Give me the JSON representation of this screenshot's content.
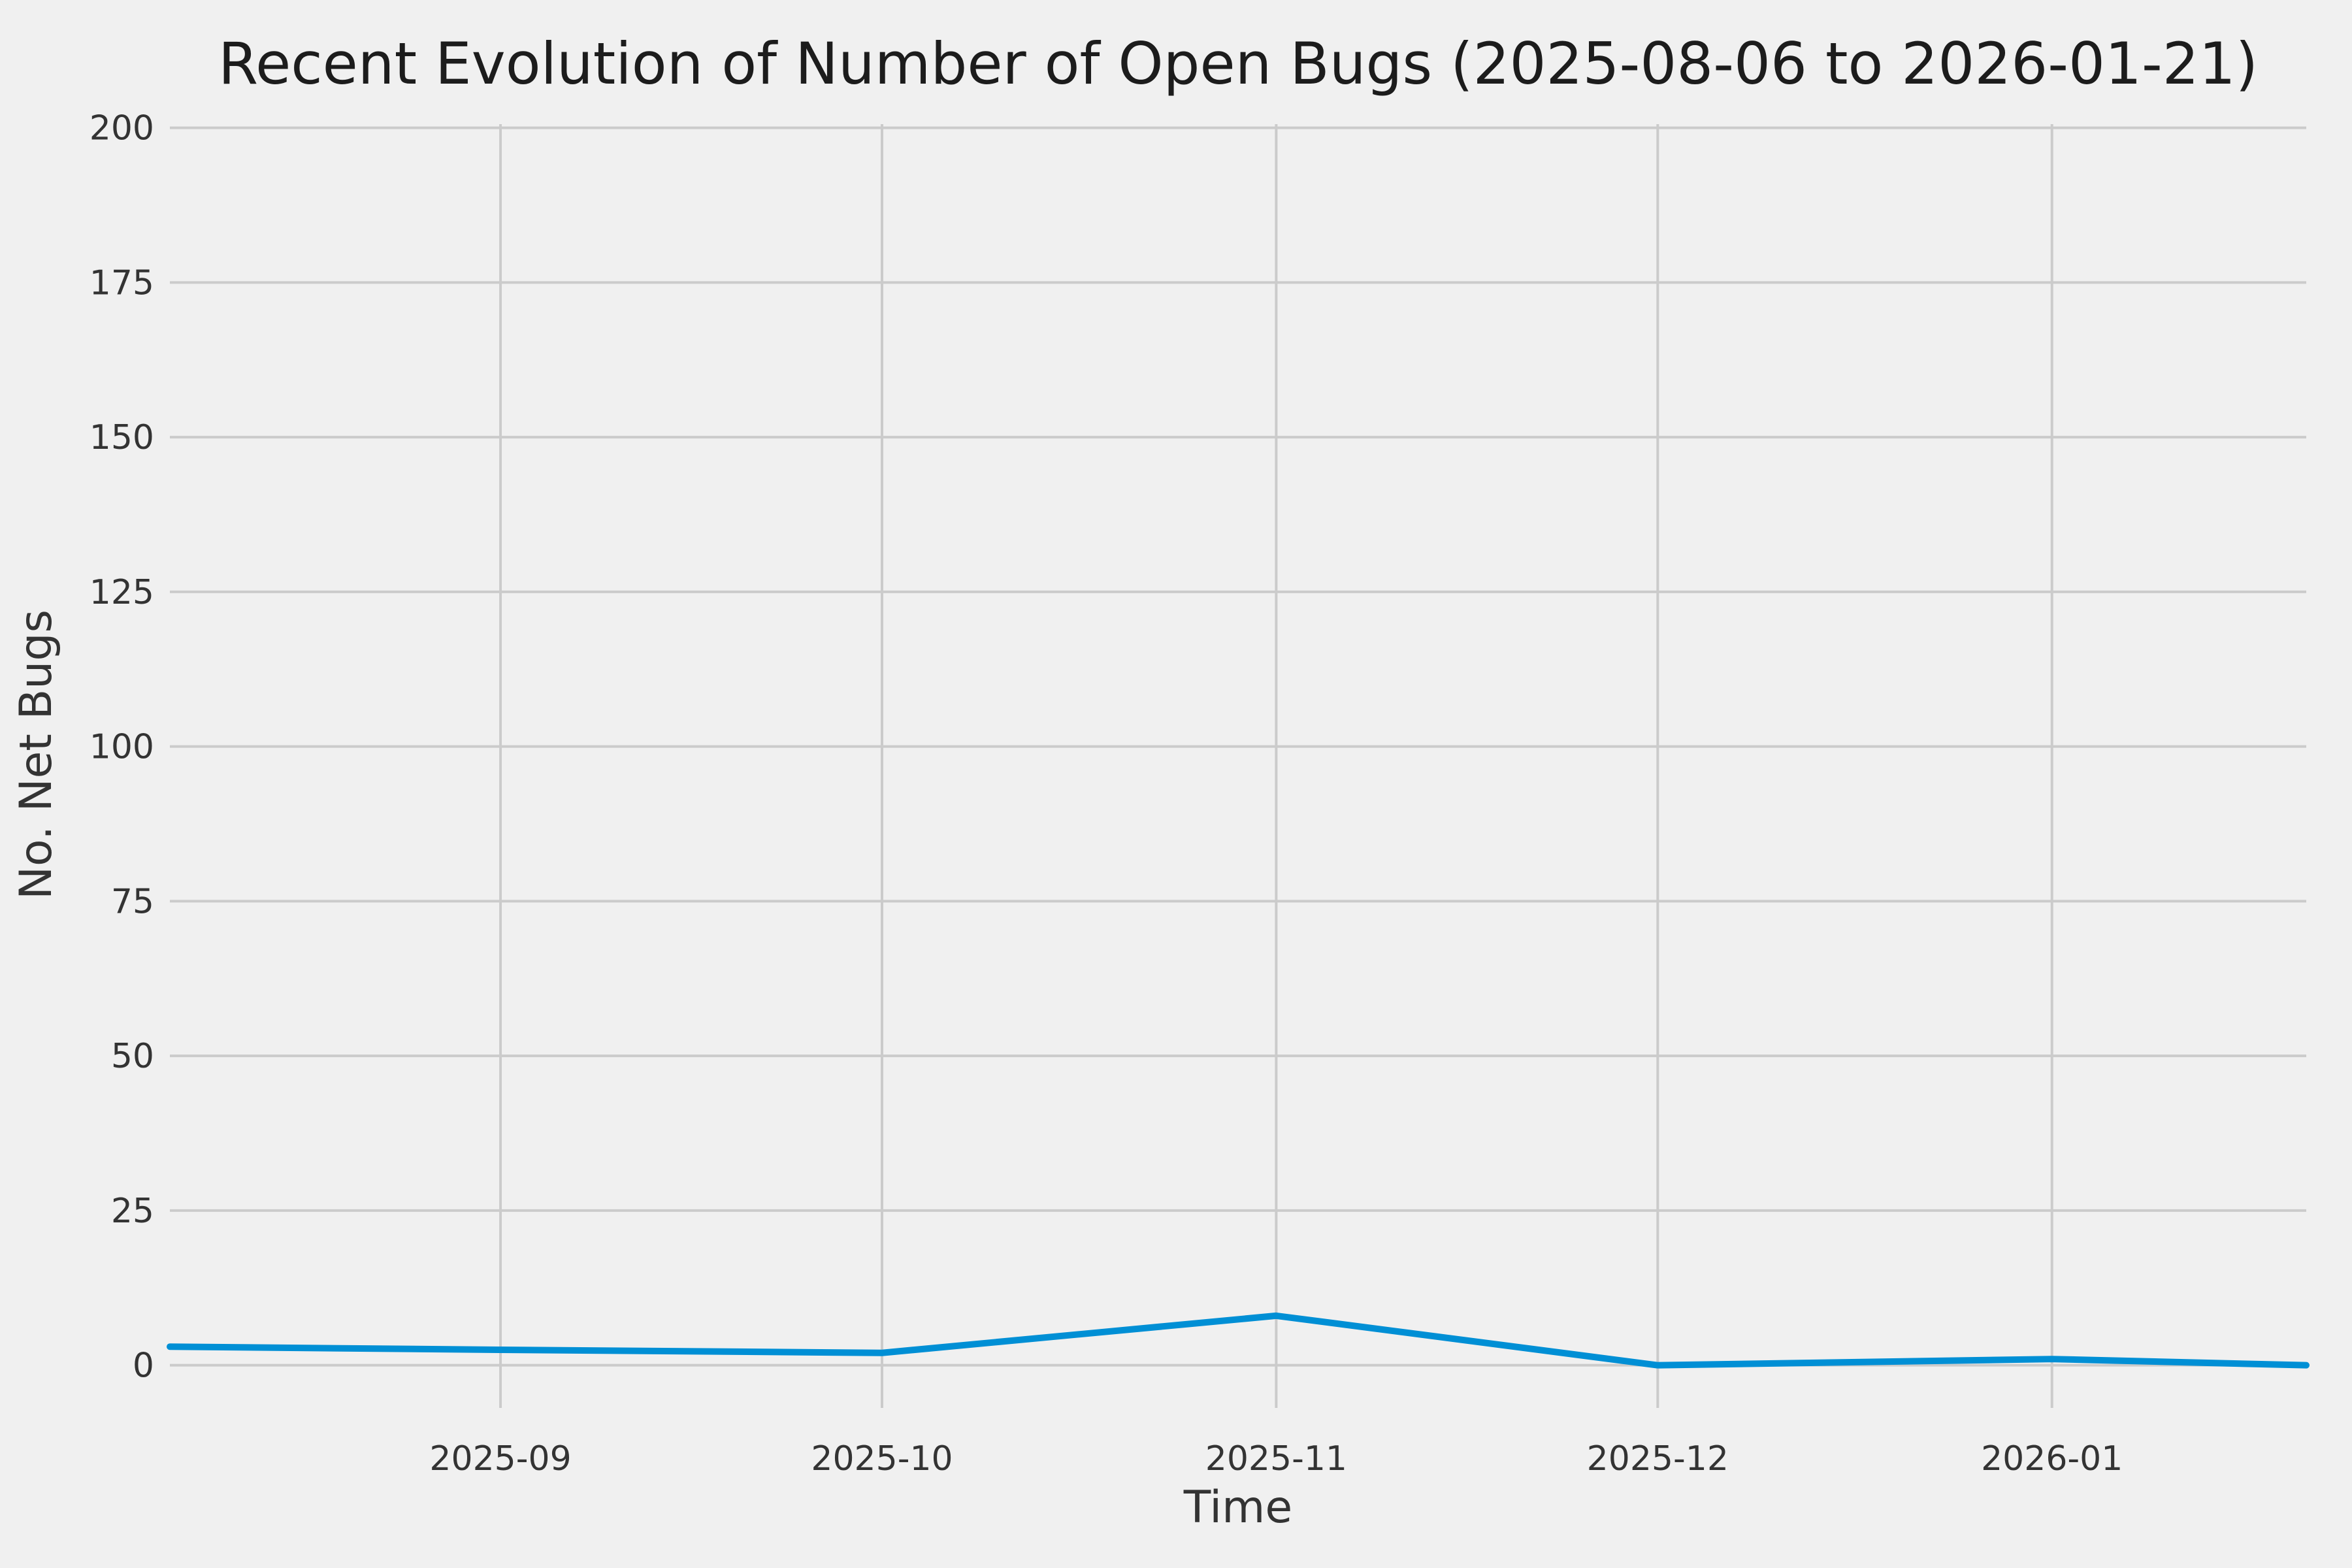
{
  "chart_data": {
    "type": "line",
    "title": "Recent Evolution of Number of Open Bugs (2025-08-06 to 2026-01-21)",
    "xlabel": "Time",
    "ylabel": "No. Net Bugs",
    "x_domain": [
      "2025-08-06",
      "2026-01-21"
    ],
    "ylim": [
      0,
      200
    ],
    "yticks": [
      0,
      25,
      50,
      75,
      100,
      125,
      150,
      175,
      200
    ],
    "xticks": [
      {
        "date": "2025-09-01",
        "label": "2025-09"
      },
      {
        "date": "2025-10-01",
        "label": "2025-10"
      },
      {
        "date": "2025-11-01",
        "label": "2025-11"
      },
      {
        "date": "2025-12-01",
        "label": "2025-12"
      },
      {
        "date": "2026-01-01",
        "label": "2026-01"
      }
    ],
    "grid": true,
    "legend": "none",
    "series": [
      {
        "name": "Open bugs",
        "color": "#008fd5",
        "points": [
          {
            "date": "2025-08-06",
            "value": 3
          },
          {
            "date": "2025-09-01",
            "value": 2.5
          },
          {
            "date": "2025-10-01",
            "value": 2
          },
          {
            "date": "2025-11-01",
            "value": 8
          },
          {
            "date": "2025-12-01",
            "value": 0
          },
          {
            "date": "2026-01-01",
            "value": 1
          },
          {
            "date": "2026-01-21",
            "value": 0
          }
        ]
      }
    ],
    "style": {
      "background": "#f0f0f0",
      "grid_color": "#cbcbcb",
      "text_color": "#333333",
      "title_color": "#1c1c1c",
      "line_width": 10
    }
  }
}
